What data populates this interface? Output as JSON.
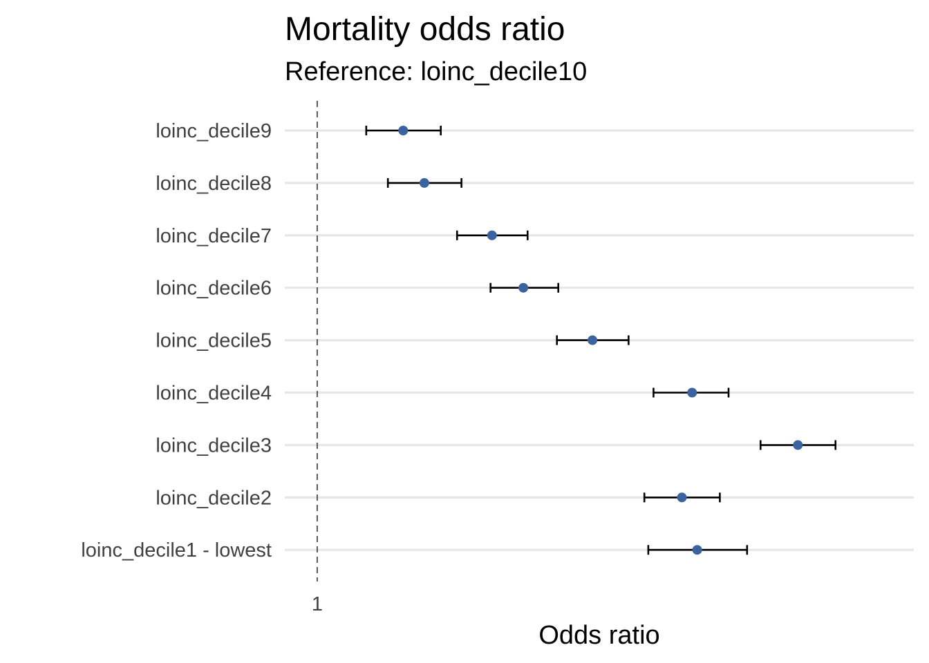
{
  "chart_data": {
    "type": "scatter",
    "title": "Mortality odds ratio",
    "subtitle": "Reference: loinc_decile10",
    "xlabel": "Odds ratio",
    "ylabel": "",
    "x_scale": "log",
    "xlim": [
      0.98,
      1.45
    ],
    "x_ticks": [
      1
    ],
    "x_tick_labels": [
      "1"
    ],
    "reference_line": 1,
    "grid": "horizontal",
    "legend": "none",
    "point_color": "#3a63a0",
    "errorbar_color": "#000000",
    "categories": [
      "loinc_decile9",
      "loinc_decile8",
      "loinc_decile7",
      "loinc_decile6",
      "loinc_decile5",
      "loinc_decile4",
      "loinc_decile3",
      "loinc_decile2",
      "loinc_decile1 - lowest"
    ],
    "series": [
      {
        "estimate": [
          1.055,
          1.069,
          1.115,
          1.137,
          1.187,
          1.263,
          1.349,
          1.255,
          1.267
        ],
        "lower": [
          1.031,
          1.045,
          1.091,
          1.114,
          1.161,
          1.233,
          1.318,
          1.226,
          1.229
        ],
        "upper": [
          1.08,
          1.094,
          1.14,
          1.162,
          1.214,
          1.292,
          1.381,
          1.285,
          1.307
        ]
      }
    ]
  }
}
